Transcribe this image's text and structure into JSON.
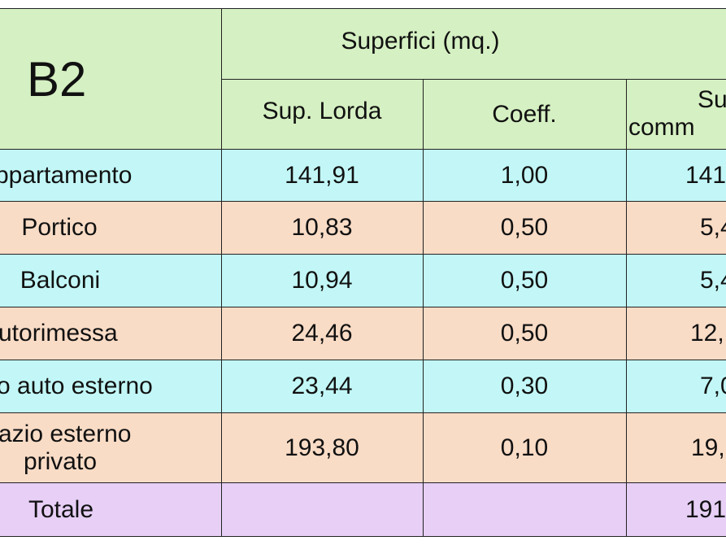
{
  "header": {
    "title": "B2",
    "group": "Superfici (mq.)",
    "columns": [
      "Sup. Lorda",
      "Coeff.",
      [
        "Su",
        "comm"
      ]
    ]
  },
  "rows": [
    {
      "label": [
        "ppartamento"
      ],
      "values": [
        "141,91",
        "1,00",
        "141"
      ]
    },
    {
      "label": [
        "Portico"
      ],
      "values": [
        "10,83",
        "0,50",
        "5,4"
      ]
    },
    {
      "label": [
        "Balconi"
      ],
      "values": [
        "10,94",
        "0,50",
        "5,4"
      ]
    },
    {
      "label": [
        "utorimessa"
      ],
      "values": [
        "24,46",
        "0,50",
        "12,"
      ]
    },
    {
      "label": [
        "o auto esterno"
      ],
      "values": [
        "23,44",
        "0,30",
        "7,0"
      ]
    },
    {
      "label": [
        "azio esterno",
        "privato"
      ],
      "values": [
        "193,80",
        "0,10",
        "19,"
      ]
    },
    {
      "label": [
        "Totale"
      ],
      "values": [
        "",
        "",
        "191"
      ]
    }
  ]
}
